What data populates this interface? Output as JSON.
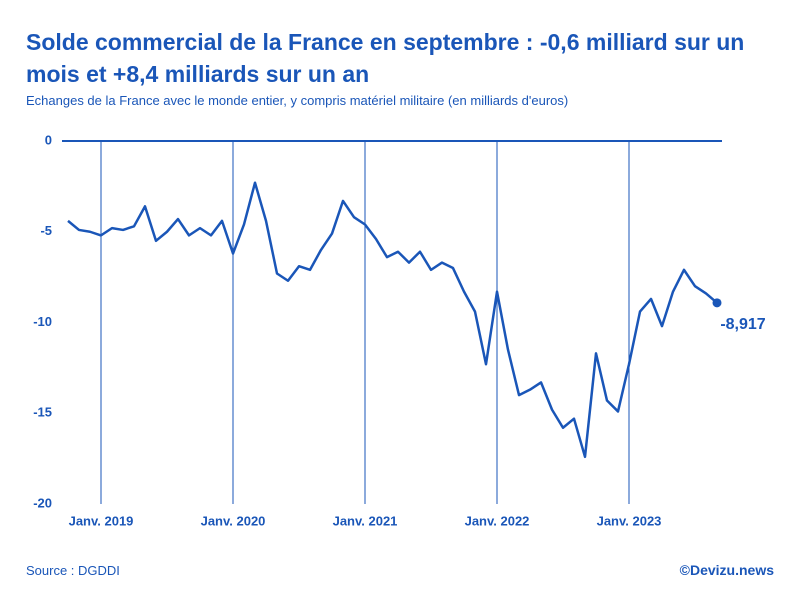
{
  "chart_data": {
    "type": "line",
    "title": "Solde commercial de la France en septembre : -0,6 milliard sur un mois et +8,4 milliards sur un an",
    "subtitle": "Echanges de la France avec le monde entier, y compris matériel militaire (en milliards d'euros)",
    "source": "Source : DGDDI",
    "credit": "©Devizu.news",
    "categories": [
      null,
      null,
      null,
      "Janv. 2019",
      null,
      null,
      null,
      null,
      null,
      null,
      null,
      null,
      null,
      null,
      null,
      "Janv. 2020",
      null,
      null,
      null,
      null,
      null,
      null,
      null,
      null,
      null,
      null,
      null,
      "Janv. 2021",
      null,
      null,
      null,
      null,
      null,
      null,
      null,
      null,
      null,
      null,
      null,
      "Janv. 2022",
      null,
      null,
      null,
      null,
      null,
      null,
      null,
      null,
      null,
      null,
      null,
      "Janv. 2023",
      null,
      null,
      null,
      null,
      null,
      null,
      null,
      null
    ],
    "values": [
      -4.4,
      -4.9,
      -5.0,
      -5.2,
      -4.8,
      -4.9,
      -4.7,
      -3.6,
      -5.5,
      -5.0,
      -4.3,
      -5.2,
      -4.8,
      -5.2,
      -4.4,
      -6.2,
      -4.6,
      -2.3,
      -4.4,
      -7.3,
      -7.7,
      -6.9,
      -7.1,
      -6.0,
      -5.1,
      -3.3,
      -4.2,
      -4.6,
      -5.4,
      -6.4,
      -6.1,
      -6.7,
      -6.1,
      -7.1,
      -6.7,
      -7.0,
      -8.3,
      -9.4,
      -12.3,
      -8.3,
      -11.5,
      -14.0,
      -13.7,
      -13.3,
      -14.8,
      -15.8,
      -15.3,
      -17.4,
      -11.7,
      -14.3,
      -14.9,
      -12.3,
      -9.4,
      -8.7,
      -10.2,
      -8.3,
      -7.1,
      -8.0,
      -8.4,
      -8.917
    ],
    "value_labels": [
      null,
      null,
      null,
      null,
      null,
      null,
      null,
      null,
      null,
      null,
      null,
      null,
      null,
      null,
      null,
      null,
      null,
      null,
      null,
      null,
      null,
      null,
      null,
      null,
      null,
      null,
      null,
      null,
      null,
      null,
      null,
      null,
      null,
      null,
      null,
      null,
      null,
      null,
      null,
      null,
      null,
      null,
      null,
      null,
      null,
      null,
      null,
      null,
      null,
      null,
      null,
      null,
      null,
      null,
      null,
      null,
      null,
      null,
      null,
      "-8,917"
    ],
    "color": "#1a56b8",
    "ylim": [
      -20,
      0
    ],
    "yticks": [
      0,
      -5,
      -10,
      -15,
      -20
    ]
  }
}
